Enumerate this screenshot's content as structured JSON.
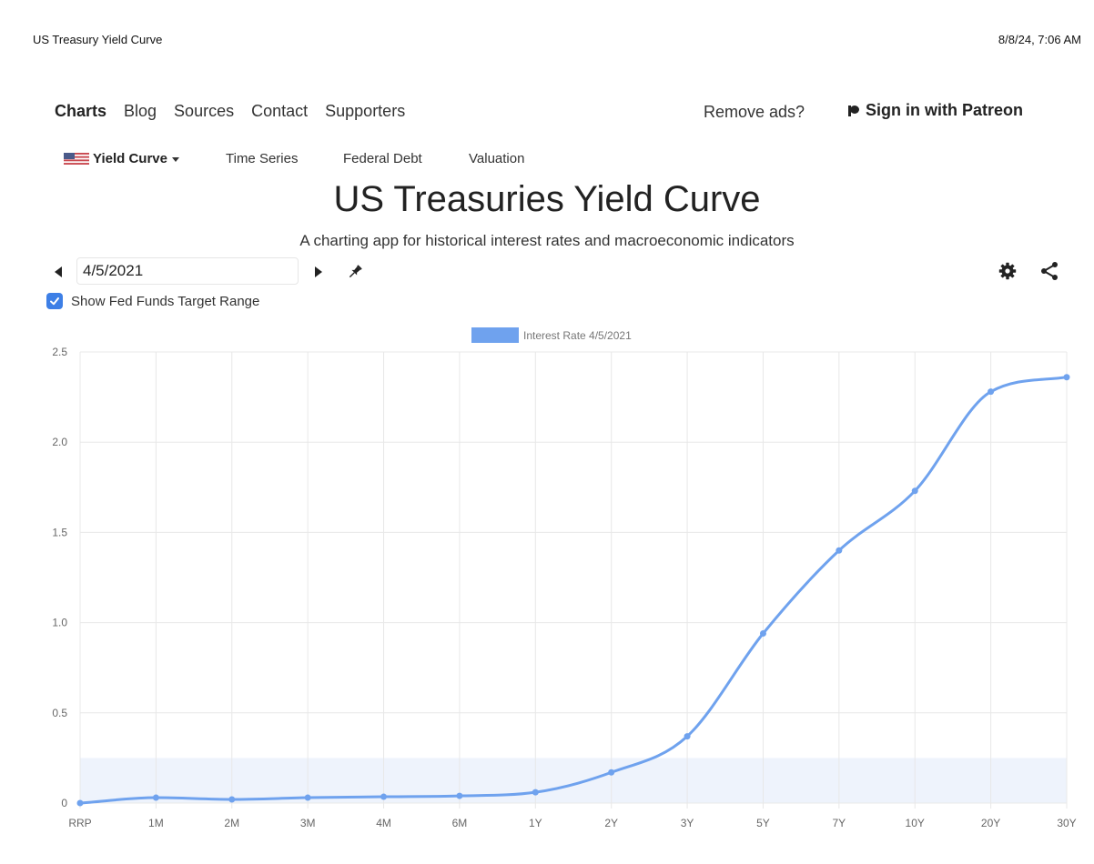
{
  "print_header": {
    "title": "US Treasury Yield Curve",
    "date": "8/8/24, 7:06 AM"
  },
  "nav": {
    "items": [
      "Charts",
      "Blog",
      "Sources",
      "Contact",
      "Supporters"
    ],
    "remove_ads": "Remove ads?",
    "patreon": "Sign in with Patreon"
  },
  "subnav": {
    "yield_curve": "Yield Curve",
    "time_series": "Time Series",
    "federal_debt": "Federal Debt",
    "valuation": "Valuation"
  },
  "page": {
    "title": "US Treasuries Yield Curve",
    "subtitle": "A charting app for historical interest rates and macroeconomic indicators"
  },
  "controls": {
    "date_value": "4/5/2021",
    "show_fed_funds_label": "Show Fed Funds Target Range",
    "show_fed_funds_checked": true
  },
  "chart_data": {
    "type": "line",
    "categories": [
      "RRP",
      "1M",
      "2M",
      "3M",
      "4M",
      "6M",
      "1Y",
      "2Y",
      "3Y",
      "5Y",
      "7Y",
      "10Y",
      "20Y",
      "30Y"
    ],
    "series": [
      {
        "name": "Interest Rate 4/5/2021",
        "values": [
          0.0,
          0.03,
          0.02,
          0.03,
          0.035,
          0.04,
          0.06,
          0.17,
          0.37,
          0.94,
          1.4,
          1.73,
          2.28,
          2.36
        ]
      }
    ],
    "yticks": [
      0,
      0.5,
      1.0,
      1.5,
      2.0,
      2.5
    ],
    "ytick_labels": [
      "0",
      "0.5",
      "1.0",
      "1.5",
      "2.0",
      "2.5"
    ],
    "ylim": [
      0,
      2.5
    ],
    "fed_funds_range": [
      0,
      0.25
    ],
    "grid": true,
    "legend": "top-center",
    "colors": {
      "line": "#6fa2ee",
      "fed_band": "#eef3fc",
      "grid": "#e8e8e8"
    }
  }
}
